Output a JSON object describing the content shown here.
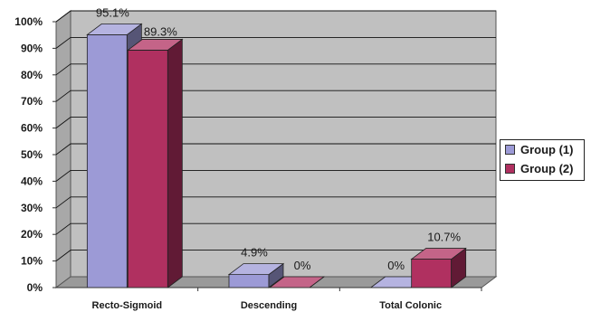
{
  "chart_data": {
    "type": "bar",
    "title": "",
    "xlabel": "",
    "ylabel": "",
    "ylim": [
      0,
      100
    ],
    "y_ticks": [
      "0%",
      "10%",
      "20%",
      "30%",
      "40%",
      "50%",
      "60%",
      "70%",
      "80%",
      "90%",
      "100%"
    ],
    "categories": [
      "Recto-Sigmoid",
      "Descending",
      "Total Colonic"
    ],
    "series": [
      {
        "name": "Group (1)",
        "values": [
          95.1,
          4.9,
          0
        ],
        "labels": [
          "95.1%",
          "4.9%",
          "0%"
        ],
        "color": "#9c9ad6"
      },
      {
        "name": "Group (2)",
        "values": [
          89.3,
          0,
          10.7
        ],
        "labels": [
          "89.3%",
          "0%",
          "10.7%"
        ],
        "color": "#b03060"
      }
    ],
    "grid": true,
    "style": "3d-column",
    "wall_color": "#c0c0c0",
    "legend_position": "right"
  }
}
